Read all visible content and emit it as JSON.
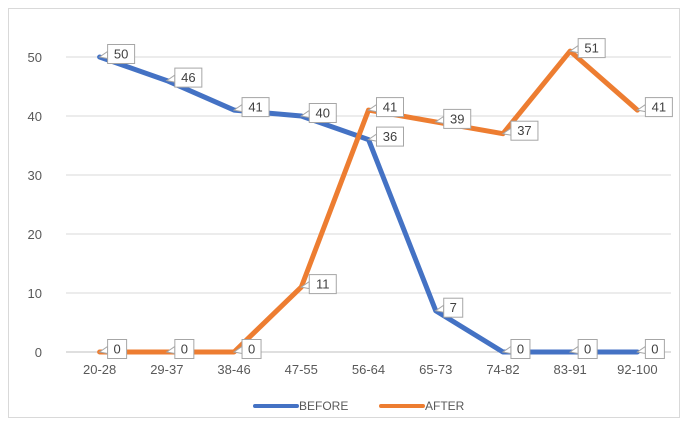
{
  "chart_data": {
    "type": "line",
    "title": "",
    "xlabel": "",
    "ylabel": "",
    "categories": [
      "20-28",
      "29-37",
      "38-46",
      "47-55",
      "56-64",
      "65-73",
      "74-82",
      "83-91",
      "92-100"
    ],
    "ylim": [
      0,
      50
    ],
    "yticks": [
      0,
      10,
      20,
      30,
      40,
      50
    ],
    "grid": true,
    "legend_position": "bottom",
    "data_labels": true,
    "series": [
      {
        "name": "BEFORE",
        "color": "#4472C4",
        "values": [
          50,
          46,
          41,
          40,
          36,
          7,
          0,
          0,
          0
        ]
      },
      {
        "name": "AFTER",
        "color": "#ED7D31",
        "values": [
          0,
          0,
          0,
          11,
          41,
          39,
          37,
          51,
          41
        ]
      }
    ]
  }
}
